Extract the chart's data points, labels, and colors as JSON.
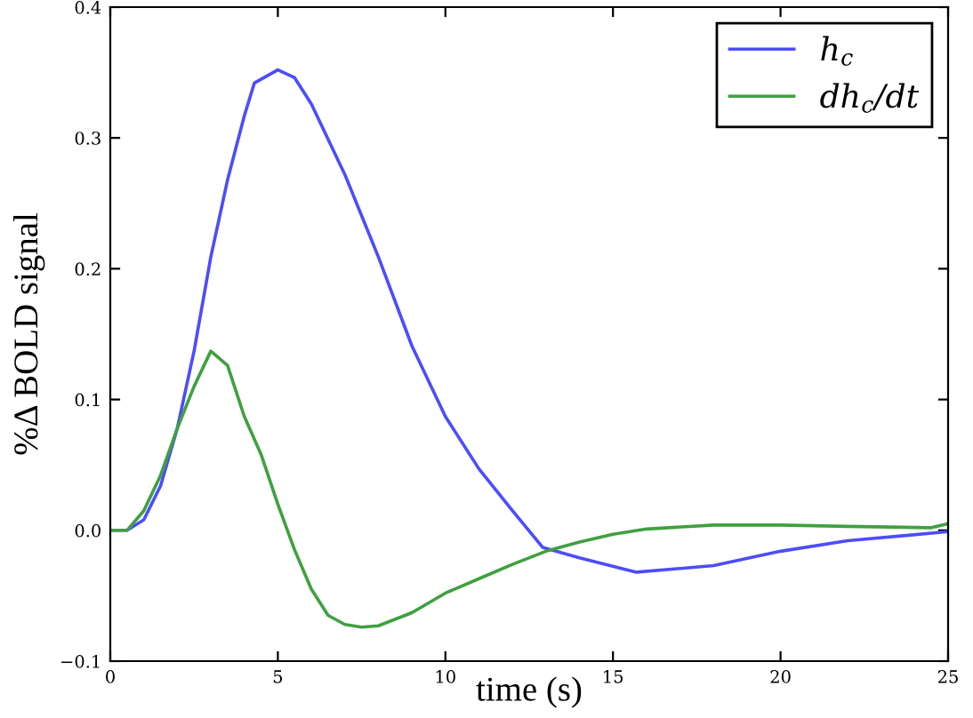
{
  "chart_data": {
    "type": "line",
    "xlabel": "time (s)",
    "ylabel": "%Δ BOLD signal",
    "xlim": [
      0,
      25
    ],
    "xticks": [
      0,
      5,
      10,
      15,
      20,
      25
    ],
    "ylim": [
      -0.1,
      0.4
    ],
    "yticks": [
      {
        "value": -0.1,
        "label": "−0.1"
      },
      {
        "value": 0.0,
        "label": "0.0"
      },
      {
        "value": 0.1,
        "label": "0.1"
      },
      {
        "value": 0.2,
        "label": "0.2"
      },
      {
        "value": 0.3,
        "label": "0.3"
      },
      {
        "value": 0.4,
        "label": "0.4"
      }
    ],
    "grid": false,
    "legend": "top right",
    "marker": "none",
    "line_style": "solid",
    "series": [
      {
        "name": "h$_{c}$",
        "color": "#4c4cff",
        "x": [
          0,
          0.5,
          1,
          1.5,
          2,
          2.5,
          3,
          3.5,
          4,
          4.3,
          5,
          5.5,
          6,
          7,
          8,
          9,
          10,
          11,
          12,
          12.9,
          14,
          15.7,
          18,
          20,
          22,
          25
        ],
        "values": [
          0,
          0,
          0.008,
          0.034,
          0.078,
          0.137,
          0.209,
          0.268,
          0.317,
          0.342,
          0.352,
          0.346,
          0.326,
          0.272,
          0.209,
          0.141,
          0.087,
          0.047,
          0.015,
          -0.013,
          -0.021,
          -0.032,
          -0.027,
          -0.016,
          -0.008,
          -0.001
        ]
      },
      {
        "name": "dh$_{c}$/dt",
        "color": "#40a040",
        "x": [
          0,
          0.5,
          1,
          1.5,
          2,
          2.5,
          3,
          3.5,
          4,
          4.5,
          5,
          5.5,
          6,
          6.5,
          7,
          7.5,
          8,
          9,
          10,
          11,
          12,
          13,
          14,
          15,
          16,
          18,
          20,
          22,
          24.5,
          25
        ],
        "values": [
          0,
          0,
          0.015,
          0.042,
          0.078,
          0.11,
          0.137,
          0.126,
          0.087,
          0.058,
          0.02,
          -0.015,
          -0.045,
          -0.065,
          -0.072,
          -0.074,
          -0.073,
          -0.063,
          -0.048,
          -0.037,
          -0.026,
          -0.016,
          -0.009,
          -0.003,
          0.001,
          0.004,
          0.004,
          0.003,
          0.002,
          0.005
        ]
      }
    ]
  }
}
